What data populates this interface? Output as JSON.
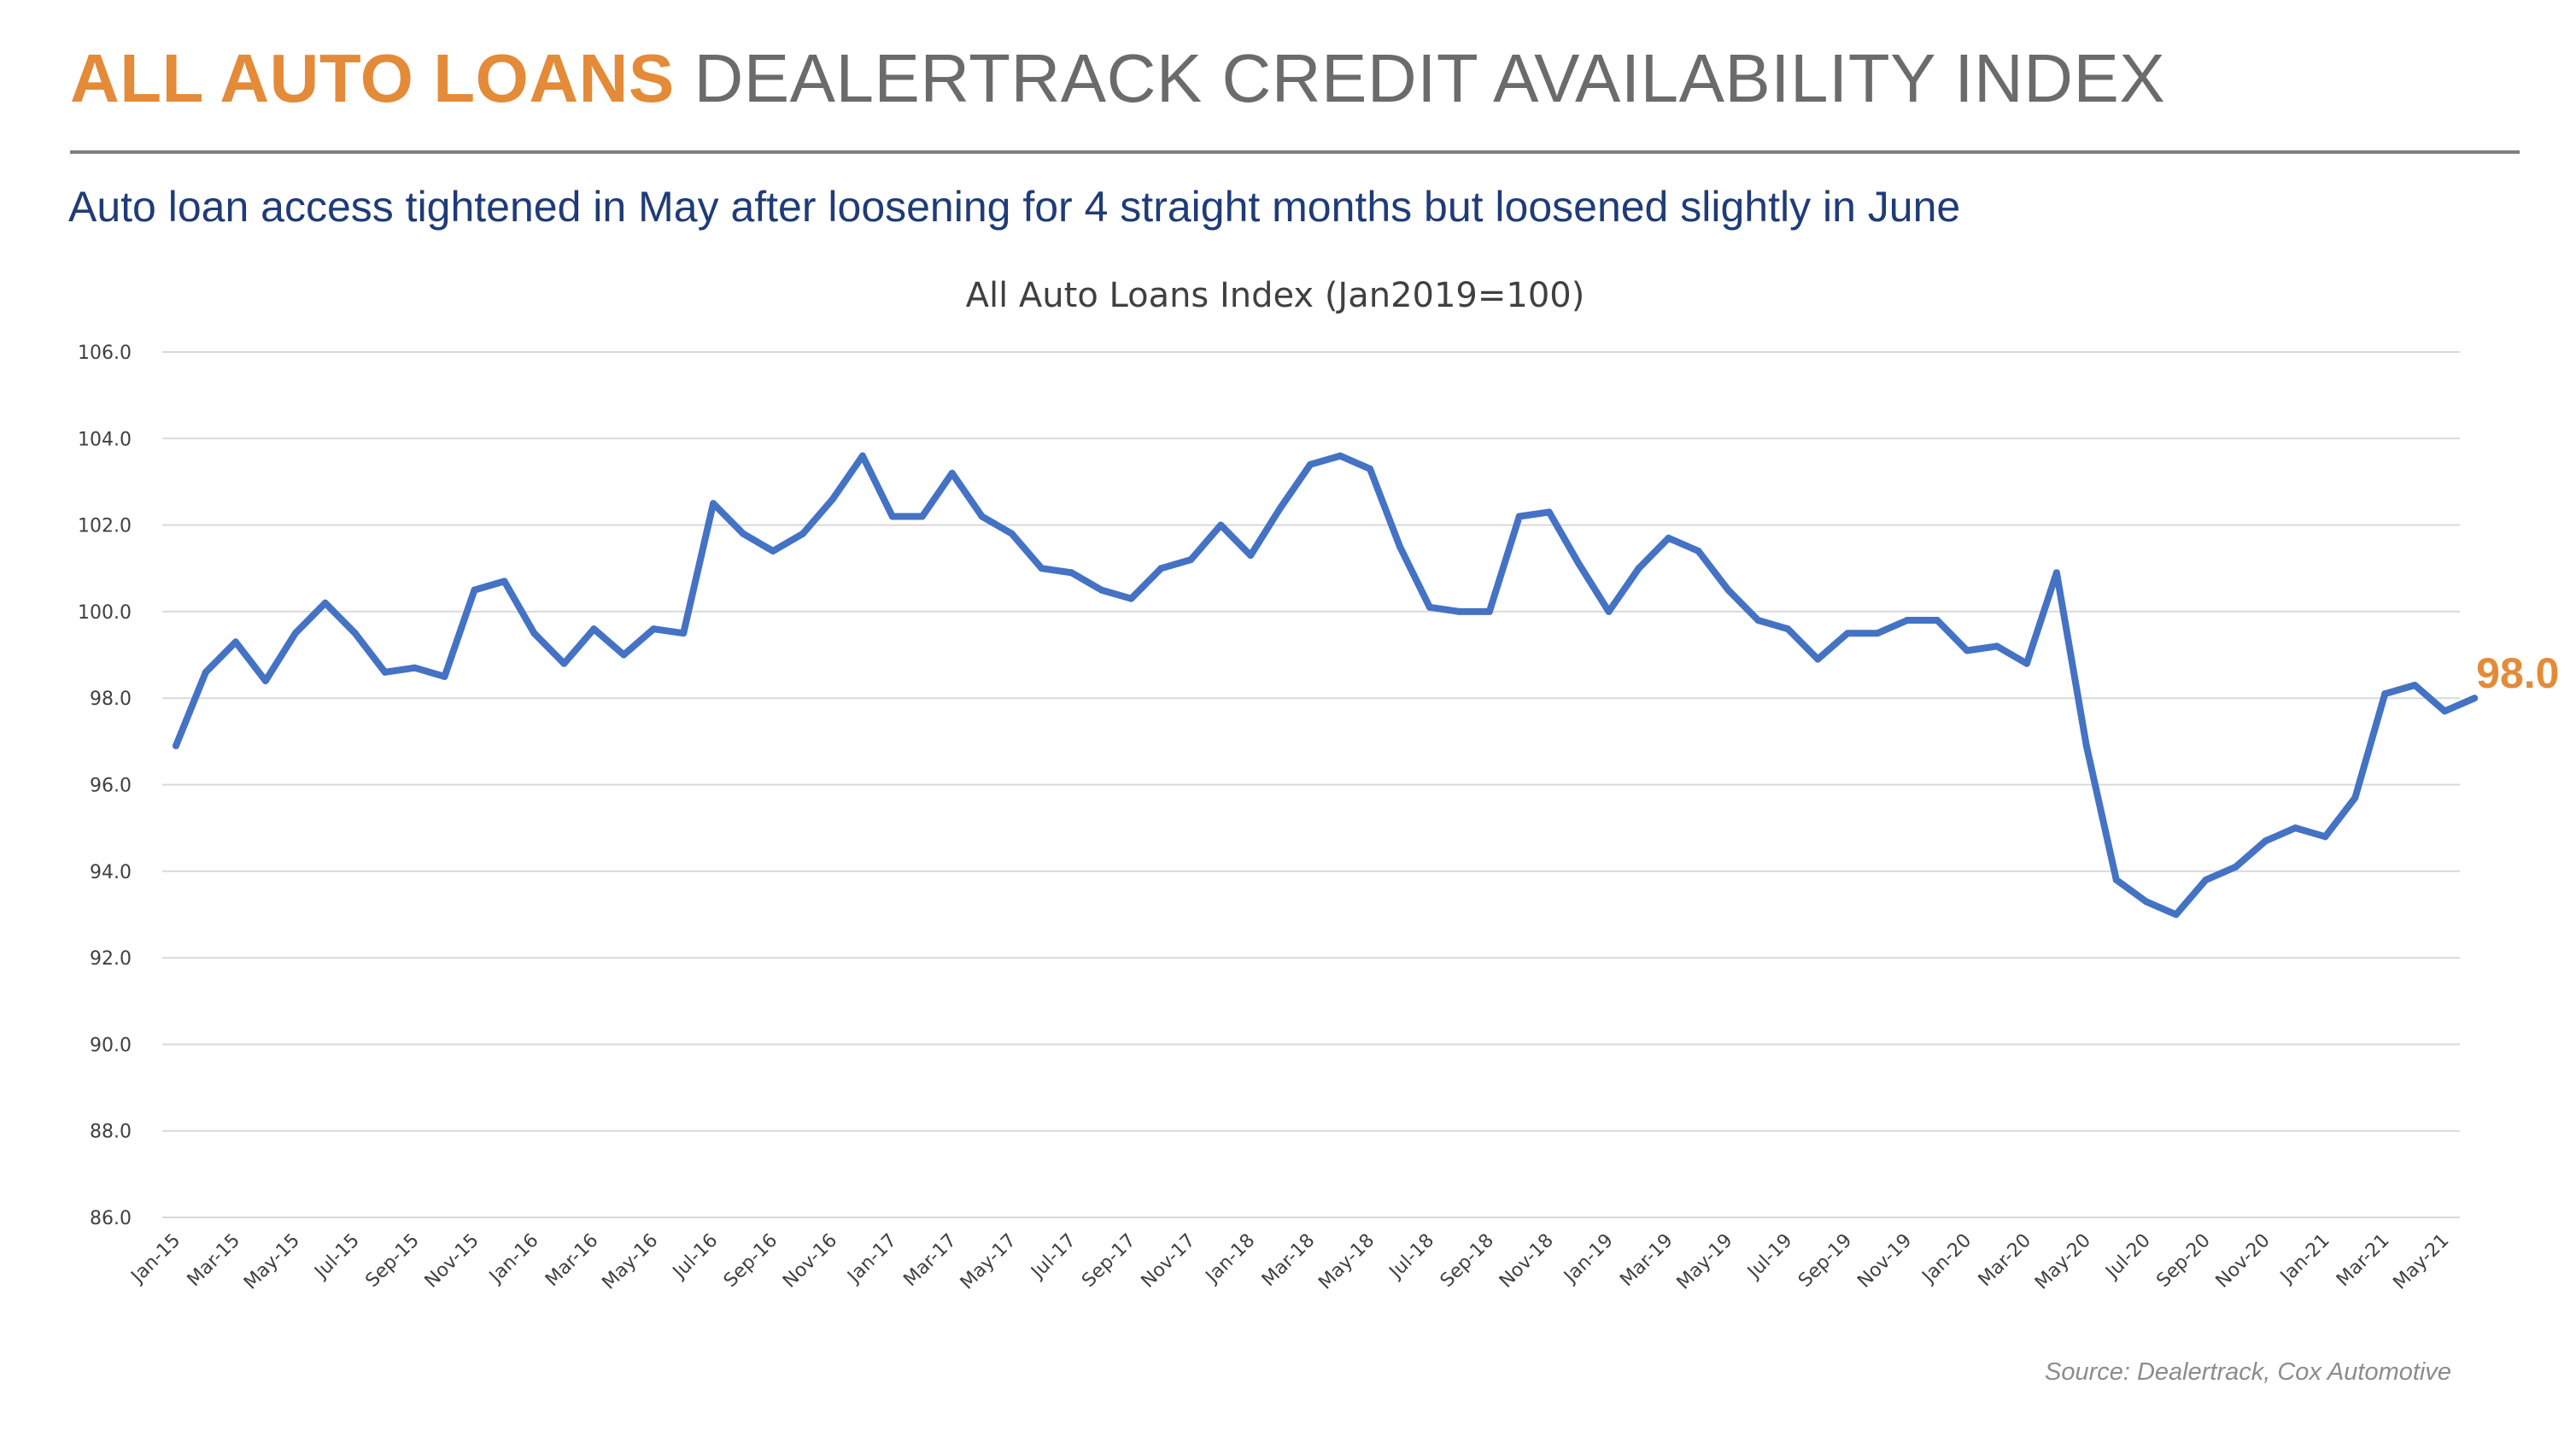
{
  "header": {
    "title_accent": "ALL AUTO LOANS",
    "title_rest": " DEALERTRACK CREDIT AVAILABILITY INDEX",
    "subtitle": "Auto loan access tightened in May after loosening for 4 straight months but loosened slightly in June"
  },
  "colors": {
    "accent": "#e38b38",
    "line": "#4472c4",
    "subtitle": "#1f3c78",
    "gridline": "#d9d9d9"
  },
  "source": "Source: Dealertrack, Cox Automotive",
  "chart_data": {
    "type": "line",
    "title": "All Auto Loans Index (Jan2019=100)",
    "xlabel": "",
    "ylabel": "",
    "ylim": [
      86,
      106
    ],
    "y_ticks": [
      "86.0",
      "88.0",
      "90.0",
      "92.0",
      "94.0",
      "96.0",
      "98.0",
      "100.0",
      "102.0",
      "104.0",
      "106.0"
    ],
    "grid": "horizontal",
    "legend": "none",
    "end_label": "98.0",
    "x": [
      "Jan-15",
      "Feb-15",
      "Mar-15",
      "Apr-15",
      "May-15",
      "Jun-15",
      "Jul-15",
      "Aug-15",
      "Sep-15",
      "Oct-15",
      "Nov-15",
      "Dec-15",
      "Jan-16",
      "Feb-16",
      "Mar-16",
      "Apr-16",
      "May-16",
      "Jun-16",
      "Jul-16",
      "Aug-16",
      "Sep-16",
      "Oct-16",
      "Nov-16",
      "Dec-16",
      "Jan-17",
      "Feb-17",
      "Mar-17",
      "Apr-17",
      "May-17",
      "Jun-17",
      "Jul-17",
      "Aug-17",
      "Sep-17",
      "Oct-17",
      "Nov-17",
      "Dec-17",
      "Jan-18",
      "Feb-18",
      "Mar-18",
      "Apr-18",
      "May-18",
      "Jun-18",
      "Jul-18",
      "Aug-18",
      "Sep-18",
      "Oct-18",
      "Nov-18",
      "Dec-18",
      "Jan-19",
      "Feb-19",
      "Mar-19",
      "Apr-19",
      "May-19",
      "Jun-19",
      "Jul-19",
      "Aug-19",
      "Sep-19",
      "Oct-19",
      "Nov-19",
      "Dec-19",
      "Jan-20",
      "Feb-20",
      "Mar-20",
      "Apr-20",
      "May-20",
      "Jun-20",
      "Jul-20",
      "Aug-20",
      "Sep-20",
      "Oct-20",
      "Nov-20",
      "Dec-20",
      "Jan-21",
      "Feb-21",
      "Mar-21",
      "Apr-21",
      "May-21",
      "Jun-21"
    ],
    "x_tick_labels": [
      "Jan-15",
      "Mar-15",
      "May-15",
      "Jul-15",
      "Sep-15",
      "Nov-15",
      "Jan-16",
      "Mar-16",
      "May-16",
      "Jul-16",
      "Sep-16",
      "Nov-16",
      "Jan-17",
      "Mar-17",
      "May-17",
      "Jul-17",
      "Sep-17",
      "Nov-17",
      "Jan-18",
      "Mar-18",
      "May-18",
      "Jul-18",
      "Sep-18",
      "Nov-18",
      "Jan-19",
      "Mar-19",
      "May-19",
      "Jul-19",
      "Sep-19",
      "Nov-19",
      "Jan-20",
      "Mar-20",
      "May-20",
      "Jul-20",
      "Sep-20",
      "Nov-20",
      "Jan-21",
      "Mar-21",
      "May-21"
    ],
    "series": [
      {
        "values": [
          96.9,
          98.6,
          99.3,
          98.4,
          99.5,
          100.2,
          99.5,
          98.6,
          98.7,
          98.5,
          100.5,
          100.7,
          99.5,
          98.8,
          99.6,
          99.0,
          99.6,
          99.5,
          102.5,
          101.8,
          101.4,
          101.8,
          102.6,
          103.6,
          102.2,
          102.2,
          103.2,
          102.2,
          101.8,
          101.0,
          100.9,
          100.5,
          100.3,
          101.0,
          101.2,
          102.0,
          101.3,
          102.4,
          103.4,
          103.6,
          103.3,
          101.5,
          100.1,
          100.0,
          100.0,
          102.2,
          102.3,
          101.1,
          100.0,
          101.0,
          101.7,
          101.4,
          100.5,
          99.8,
          99.6,
          98.9,
          99.5,
          99.5,
          99.8,
          99.8,
          99.1,
          99.2,
          98.8,
          100.9,
          96.9,
          93.8,
          93.3,
          93.0,
          93.8,
          94.1,
          94.7,
          95.0,
          94.8,
          95.7,
          98.1,
          98.3,
          97.7,
          98.0
        ]
      }
    ]
  }
}
